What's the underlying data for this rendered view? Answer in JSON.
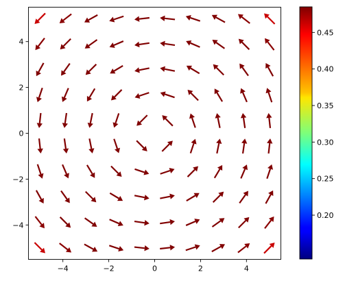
{
  "chart_data": {
    "type": "quiver",
    "title": "",
    "xlabel": "",
    "ylabel": "",
    "xlim": [
      -5.5,
      5.5
    ],
    "ylim": [
      -5.5,
      5.5
    ],
    "grid": false,
    "xticks": [
      -4,
      -2,
      0,
      2,
      4
    ],
    "yticks": [
      -4,
      -2,
      0,
      2,
      4
    ],
    "grid_x": [
      -5.0,
      -3.889,
      -2.778,
      -1.667,
      -0.556,
      0.556,
      1.667,
      2.778,
      3.889,
      5.0
    ],
    "grid_y": [
      -5.0,
      -3.889,
      -2.778,
      -1.667,
      -0.556,
      0.556,
      1.667,
      2.778,
      3.889,
      5.0
    ],
    "vector_field": "u = -y / (x^2 + y^2 + 1)^0.3, v = x / (x^2 + y^2 + 1)^0.3 (counter-clockwise rotation)",
    "colorbar": {
      "colormap": "jet",
      "range": [
        0.14,
        0.485
      ],
      "ticks": [
        0.2,
        0.25,
        0.3,
        0.35,
        0.4,
        0.45
      ],
      "tick_labels": [
        "0.20",
        "0.25",
        "0.30",
        "0.35",
        "0.40",
        "0.45"
      ]
    }
  }
}
